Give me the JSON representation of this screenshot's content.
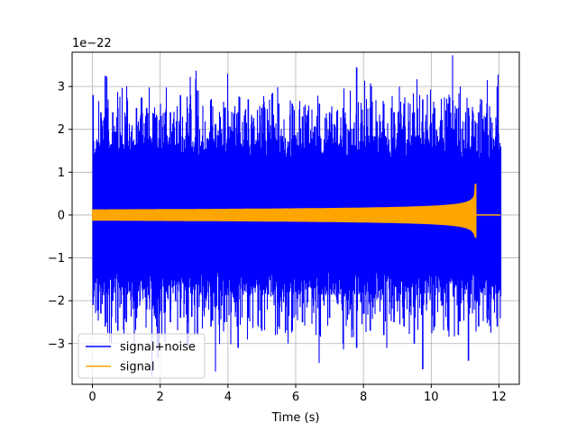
{
  "chart_data": {
    "type": "line",
    "xlabel": "Time (s)",
    "ylabel": "",
    "scale_label": "1e−22",
    "xlim": [
      -0.6,
      12.6
    ],
    "ylim": [
      -3.95,
      3.8
    ],
    "xticks": [
      0,
      2,
      4,
      6,
      8,
      10,
      12
    ],
    "xtick_labels": [
      "0",
      "2",
      "4",
      "6",
      "8",
      "10",
      "12"
    ],
    "yticks": [
      -3,
      -2,
      -1,
      0,
      1,
      2,
      3
    ],
    "ytick_labels": [
      "−3",
      "−2",
      "−1",
      "0",
      "1",
      "2",
      "3"
    ],
    "grid": true,
    "legend_position": "lower-left",
    "series": [
      {
        "name": "signal+noise",
        "color": "#0000ff",
        "kind": "noise-band",
        "x_range": [
          0,
          12.05
        ],
        "typical_amplitude": 1.6,
        "spike_envelope": [
          [
            0.02,
            2.8,
            -2.1
          ],
          [
            0.25,
            2.4,
            -2.3
          ],
          [
            0.38,
            3.25,
            -2.6
          ],
          [
            0.6,
            2.4,
            -2.0
          ],
          [
            0.75,
            2.5,
            -2.7
          ],
          [
            1.0,
            2.3,
            -2.5
          ],
          [
            1.3,
            2.5,
            -2.4
          ],
          [
            1.6,
            2.5,
            -2.2
          ],
          [
            1.9,
            2.3,
            -2.6
          ],
          [
            2.3,
            2.4,
            -2.5
          ],
          [
            2.6,
            2.8,
            -2.4
          ],
          [
            2.8,
            2.5,
            -2.5
          ],
          [
            3.1,
            2.3,
            -2.8
          ],
          [
            3.5,
            2.6,
            -2.6
          ],
          [
            3.9,
            2.5,
            -2.5
          ],
          [
            4.3,
            2.4,
            -3.1
          ],
          [
            4.6,
            2.7,
            -2.4
          ],
          [
            5.0,
            2.5,
            -2.7
          ],
          [
            5.5,
            2.6,
            -2.6
          ],
          [
            5.9,
            2.6,
            -2.7
          ],
          [
            6.2,
            2.3,
            -2.5
          ],
          [
            6.7,
            2.6,
            -2.8
          ],
          [
            7.0,
            2.4,
            -2.4
          ],
          [
            7.4,
            2.5,
            -3.0
          ],
          [
            7.8,
            3.45,
            -3.1
          ],
          [
            8.2,
            2.5,
            -2.7
          ],
          [
            8.6,
            2.6,
            -2.8
          ],
          [
            8.9,
            2.4,
            -2.5
          ],
          [
            9.2,
            2.6,
            -2.6
          ],
          [
            9.5,
            2.4,
            -3.0
          ],
          [
            9.75,
            2.7,
            -3.6
          ],
          [
            10.1,
            2.5,
            -2.6
          ],
          [
            10.5,
            2.6,
            -2.7
          ],
          [
            10.8,
            2.5,
            -2.8
          ],
          [
            11.1,
            2.5,
            -3.4
          ],
          [
            11.4,
            2.4,
            -2.6
          ],
          [
            11.65,
            2.6,
            -2.4
          ],
          [
            11.95,
            3.0,
            -2.6
          ],
          [
            12.05,
            1.6,
            -1.9
          ]
        ]
      },
      {
        "name": "signal",
        "color": "#ffa500",
        "kind": "chirp",
        "x_range": [
          0,
          12.05
        ],
        "merger_time": 11.33,
        "amplitude_start": 0.12,
        "amplitude_peak_pos": 0.72,
        "amplitude_peak_neg": -0.52,
        "post_merger_value": 0.0
      }
    ]
  }
}
